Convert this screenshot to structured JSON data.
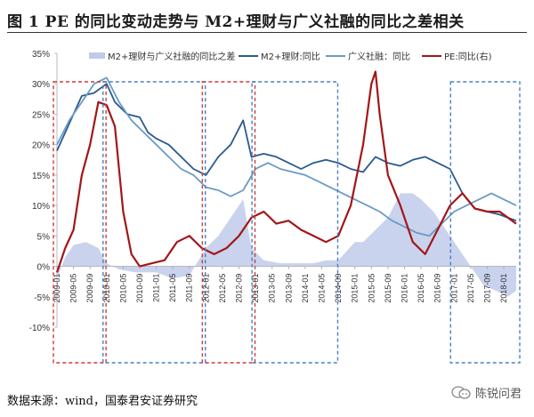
{
  "title": "图 1   PE 的同比变动走势与 M2+理财与广义社融的同比之差相关",
  "source": "数据来源：wind，国泰君安证券研究",
  "watermark": "陈锐问君",
  "chart_data": {
    "type": "line",
    "legend": [
      "M2+理财与广义社融的同比之差",
      "M2+理财:同比",
      "广义社融：同比",
      "PE:同比(右)"
    ],
    "legend_position": "top",
    "ylim": [
      -0.1,
      0.35
    ],
    "yticks": [
      "-10%",
      "-5%",
      "0%",
      "5%",
      "10%",
      "15%",
      "20%",
      "25%",
      "30%",
      "35%"
    ],
    "ytick_values": [
      -0.1,
      -0.05,
      0,
      0.05,
      0.1,
      0.15,
      0.2,
      0.25,
      0.3,
      0.35
    ],
    "x_start": "2009-01",
    "x_end": "2018-04",
    "xticks": [
      "2009-01",
      "2009-05",
      "2009-09",
      "2010-01",
      "2010-05",
      "2010-09",
      "2011-01",
      "2011-05",
      "2011-09",
      "2012-01",
      "2012-05",
      "2012-09",
      "2013-01",
      "2013-05",
      "2013-09",
      "2014-01",
      "2014-05",
      "2014-09",
      "2015-01",
      "2015-05",
      "2015-09",
      "2016-01",
      "2016-05",
      "2016-09",
      "2017-01",
      "2017-05",
      "2017-09",
      "2018-01"
    ],
    "colors": {
      "diff_area": "#bfcbea",
      "m2": "#2a5a8f",
      "social": "#6a9bc5",
      "pe": "#a31619",
      "box_red": "#cf3a3a",
      "box_blue": "#4a80c2"
    },
    "series": [
      {
        "name": "M2+理财与广义社融的同比之差",
        "kind": "area",
        "points": [
          [
            "2009-01",
            -0.02
          ],
          [
            "2009-03",
            0.015
          ],
          [
            "2009-05",
            0.035
          ],
          [
            "2009-08",
            0.04
          ],
          [
            "2009-11",
            0.03
          ],
          [
            "2010-01",
            0.005
          ],
          [
            "2010-04",
            -0.005
          ],
          [
            "2010-08",
            -0.01
          ],
          [
            "2011-01",
            -0.01
          ],
          [
            "2011-05",
            -0.02
          ],
          [
            "2011-09",
            -0.015
          ],
          [
            "2012-01",
            0.03
          ],
          [
            "2012-04",
            0.05
          ],
          [
            "2012-07",
            0.08
          ],
          [
            "2012-10",
            0.11
          ],
          [
            "2012-12",
            0.03
          ],
          [
            "2013-03",
            0.01
          ],
          [
            "2013-07",
            0.005
          ],
          [
            "2013-11",
            0.005
          ],
          [
            "2014-03",
            0.005
          ],
          [
            "2014-06",
            0.01
          ],
          [
            "2014-09",
            0.01
          ],
          [
            "2015-01",
            0.04
          ],
          [
            "2015-03",
            0.04
          ],
          [
            "2015-06",
            0.06
          ],
          [
            "2015-09",
            0.08
          ],
          [
            "2015-12",
            0.12
          ],
          [
            "2016-03",
            0.12
          ],
          [
            "2016-05",
            0.11
          ],
          [
            "2016-08",
            0.09
          ],
          [
            "2016-11",
            0.06
          ],
          [
            "2017-02",
            0.03
          ],
          [
            "2017-05",
            0.0
          ],
          [
            "2017-08",
            -0.03
          ],
          [
            "2017-11",
            -0.04
          ],
          [
            "2018-02",
            -0.05
          ],
          [
            "2018-04",
            -0.04
          ]
        ]
      },
      {
        "name": "M2+理财:同比",
        "kind": "line",
        "points": [
          [
            "2009-01",
            0.19
          ],
          [
            "2009-03",
            0.22
          ],
          [
            "2009-05",
            0.25
          ],
          [
            "2009-07",
            0.28
          ],
          [
            "2009-10",
            0.285
          ],
          [
            "2010-01",
            0.3
          ],
          [
            "2010-03",
            0.27
          ],
          [
            "2010-06",
            0.25
          ],
          [
            "2010-09",
            0.245
          ],
          [
            "2010-11",
            0.22
          ],
          [
            "2011-01",
            0.21
          ],
          [
            "2011-04",
            0.2
          ],
          [
            "2011-07",
            0.18
          ],
          [
            "2011-10",
            0.16
          ],
          [
            "2012-01",
            0.15
          ],
          [
            "2012-04",
            0.18
          ],
          [
            "2012-07",
            0.2
          ],
          [
            "2012-10",
            0.24
          ],
          [
            "2012-12",
            0.18
          ],
          [
            "2013-03",
            0.185
          ],
          [
            "2013-06",
            0.18
          ],
          [
            "2013-09",
            0.17
          ],
          [
            "2013-12",
            0.16
          ],
          [
            "2014-03",
            0.17
          ],
          [
            "2014-06",
            0.175
          ],
          [
            "2014-09",
            0.17
          ],
          [
            "2014-12",
            0.16
          ],
          [
            "2015-03",
            0.155
          ],
          [
            "2015-06",
            0.18
          ],
          [
            "2015-09",
            0.17
          ],
          [
            "2015-12",
            0.165
          ],
          [
            "2016-03",
            0.175
          ],
          [
            "2016-06",
            0.18
          ],
          [
            "2016-09",
            0.17
          ],
          [
            "2016-12",
            0.16
          ],
          [
            "2017-03",
            0.12
          ],
          [
            "2017-06",
            0.095
          ],
          [
            "2017-09",
            0.09
          ],
          [
            "2017-12",
            0.085
          ],
          [
            "2018-02",
            0.08
          ],
          [
            "2018-04",
            0.075
          ]
        ]
      },
      {
        "name": "广义社融：同比",
        "kind": "line",
        "points": [
          [
            "2009-01",
            0.2
          ],
          [
            "2009-04",
            0.24
          ],
          [
            "2009-07",
            0.27
          ],
          [
            "2009-10",
            0.3
          ],
          [
            "2010-01",
            0.31
          ],
          [
            "2010-04",
            0.27
          ],
          [
            "2010-07",
            0.24
          ],
          [
            "2010-10",
            0.22
          ],
          [
            "2011-01",
            0.2
          ],
          [
            "2011-04",
            0.18
          ],
          [
            "2011-07",
            0.16
          ],
          [
            "2011-10",
            0.15
          ],
          [
            "2012-01",
            0.13
          ],
          [
            "2012-04",
            0.125
          ],
          [
            "2012-07",
            0.115
          ],
          [
            "2012-10",
            0.125
          ],
          [
            "2013-01",
            0.16
          ],
          [
            "2013-04",
            0.17
          ],
          [
            "2013-07",
            0.16
          ],
          [
            "2013-10",
            0.155
          ],
          [
            "2014-01",
            0.15
          ],
          [
            "2014-04",
            0.14
          ],
          [
            "2014-07",
            0.13
          ],
          [
            "2014-10",
            0.12
          ],
          [
            "2015-01",
            0.11
          ],
          [
            "2015-04",
            0.1
          ],
          [
            "2015-07",
            0.09
          ],
          [
            "2015-10",
            0.075
          ],
          [
            "2016-01",
            0.065
          ],
          [
            "2016-04",
            0.055
          ],
          [
            "2016-07",
            0.05
          ],
          [
            "2016-10",
            0.07
          ],
          [
            "2017-01",
            0.09
          ],
          [
            "2017-04",
            0.1
          ],
          [
            "2017-07",
            0.11
          ],
          [
            "2017-10",
            0.12
          ],
          [
            "2018-01",
            0.11
          ],
          [
            "2018-04",
            0.1
          ]
        ]
      },
      {
        "name": "PE:同比(右)",
        "kind": "line",
        "points": [
          [
            "2009-01",
            -0.01
          ],
          [
            "2009-03",
            0.03
          ],
          [
            "2009-05",
            0.06
          ],
          [
            "2009-07",
            0.15
          ],
          [
            "2009-09",
            0.2
          ],
          [
            "2009-11",
            0.27
          ],
          [
            "2010-01",
            0.265
          ],
          [
            "2010-03",
            0.23
          ],
          [
            "2010-05",
            0.09
          ],
          [
            "2010-07",
            0.02
          ],
          [
            "2010-09",
            0.0
          ],
          [
            "2010-12",
            0.005
          ],
          [
            "2011-03",
            0.01
          ],
          [
            "2011-06",
            0.04
          ],
          [
            "2011-09",
            0.05
          ],
          [
            "2011-12",
            0.03
          ],
          [
            "2012-03",
            0.02
          ],
          [
            "2012-06",
            0.03
          ],
          [
            "2012-09",
            0.05
          ],
          [
            "2012-12",
            0.08
          ],
          [
            "2013-03",
            0.09
          ],
          [
            "2013-06",
            0.07
          ],
          [
            "2013-09",
            0.075
          ],
          [
            "2013-12",
            0.06
          ],
          [
            "2014-03",
            0.05
          ],
          [
            "2014-06",
            0.04
          ],
          [
            "2014-09",
            0.05
          ],
          [
            "2014-12",
            0.1
          ],
          [
            "2015-03",
            0.2
          ],
          [
            "2015-05",
            0.3
          ],
          [
            "2015-06",
            0.32
          ],
          [
            "2015-07",
            0.25
          ],
          [
            "2015-09",
            0.15
          ],
          [
            "2015-12",
            0.1
          ],
          [
            "2016-03",
            0.04
          ],
          [
            "2016-06",
            0.02
          ],
          [
            "2016-09",
            0.06
          ],
          [
            "2016-12",
            0.1
          ],
          [
            "2017-03",
            0.12
          ],
          [
            "2017-06",
            0.095
          ],
          [
            "2017-09",
            0.09
          ],
          [
            "2017-12",
            0.09
          ],
          [
            "2018-02",
            0.08
          ],
          [
            "2018-04",
            0.07
          ]
        ]
      }
    ],
    "highlight_windows": [
      {
        "style": "red-dashed",
        "from": "2009-01",
        "to": "2009-12"
      },
      {
        "style": "blue-dashed",
        "from": "2010-01",
        "to": "2011-12"
      },
      {
        "style": "red-dashed",
        "from": "2012-01",
        "to": "2012-12"
      },
      {
        "style": "blue-dashed",
        "from": "2013-01",
        "to": "2014-08"
      },
      {
        "style": "blue-dashed",
        "from": "2017-01",
        "to": "2018-04"
      }
    ]
  }
}
